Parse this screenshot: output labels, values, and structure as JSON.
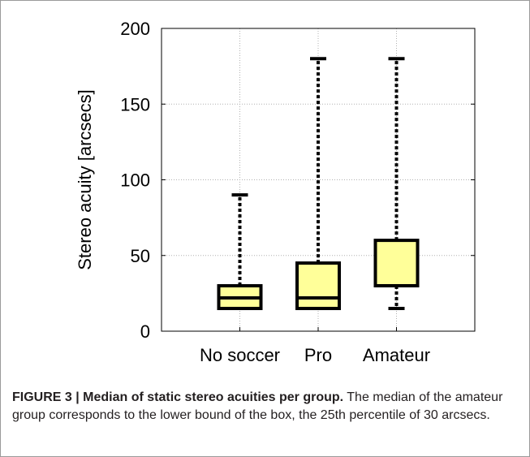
{
  "chart_data": {
    "type": "boxplot",
    "title": "",
    "xlabel": "",
    "ylabel": "Stereo acuity [arcsecs]",
    "ylim": [
      0,
      200
    ],
    "yticks": [
      0,
      50,
      100,
      150,
      200
    ],
    "grid": true,
    "categories": [
      "No soccer",
      "Pro",
      "Amateur"
    ],
    "boxes": [
      {
        "category": "No soccer",
        "whisker_low": 15,
        "q1": 15,
        "median": 22,
        "q3": 30,
        "whisker_high": 90
      },
      {
        "category": "Pro",
        "whisker_low": 15,
        "q1": 15,
        "median": 22,
        "q3": 45,
        "whisker_high": 180
      },
      {
        "category": "Amateur",
        "whisker_low": 15,
        "q1": 30,
        "median": 30,
        "q3": 60,
        "whisker_high": 180
      }
    ],
    "colors": {
      "box_fill": "#ffff99",
      "box_stroke": "#000000",
      "grid": "#b0b0b0",
      "axis": "#000000"
    }
  },
  "caption": {
    "label": "FIGURE 3 | Median of static stereo acuities per group.",
    "text": " The median of the amateur group corresponds to the lower bound of the box, the 25th percentile of 30 arcsecs."
  }
}
